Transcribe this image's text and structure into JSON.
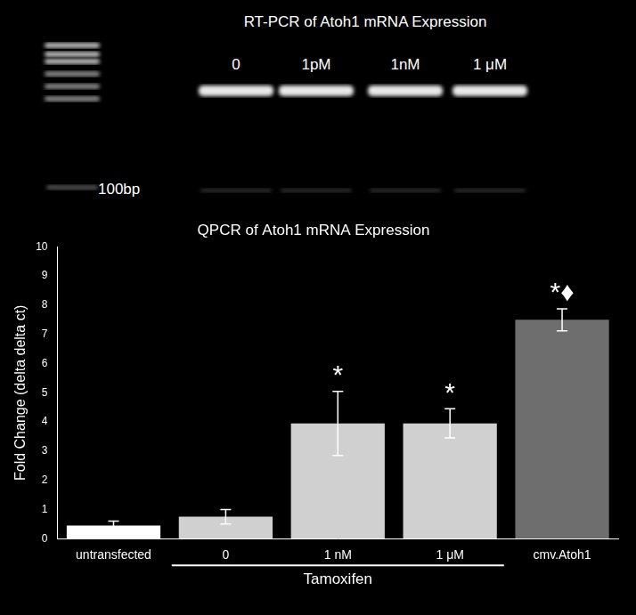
{
  "gel": {
    "title": "RT-PCR of Atoh1 mRNA Expression",
    "lanes": [
      "0",
      "1pM",
      "1nM",
      "1 μM"
    ],
    "ladder_label": "100bp"
  },
  "chart_data": {
    "type": "bar",
    "title": "QPCR of Atoh1 mRNA Expression",
    "y_label": "Fold Change (delta delta ct)",
    "categories": [
      "untransfected",
      "0",
      "1 nM",
      "1 μM",
      "cmv.Atoh1"
    ],
    "values": [
      0.45,
      0.75,
      3.95,
      3.95,
      7.5
    ],
    "errors": [
      0.15,
      0.25,
      1.1,
      0.5,
      0.38
    ],
    "significance": [
      null,
      null,
      "*",
      "*",
      "*♦"
    ],
    "colors": [
      "#ffffff",
      "#d0d0d0",
      "#d0d0d0",
      "#d0d0d0",
      "#6e6e6e"
    ],
    "group_label": {
      "text": "Tamoxifen",
      "categories": [
        "0",
        "1 nM",
        "1 μM"
      ]
    },
    "ylim": [
      0,
      10
    ],
    "yticks": [
      0,
      1,
      2,
      3,
      4,
      5,
      6,
      7,
      8,
      9,
      10
    ],
    "grid": false
  }
}
